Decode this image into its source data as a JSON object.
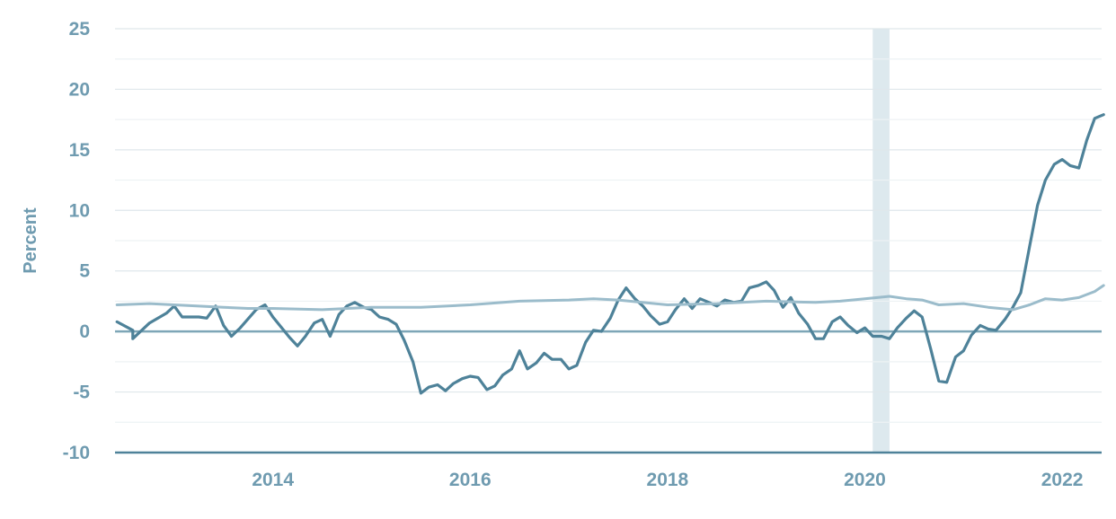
{
  "chart_data": {
    "type": "line",
    "title": "",
    "xlabel": "",
    "ylabel": "Percent",
    "xlim": [
      2012.4,
      2022.4
    ],
    "ylim": [
      -10,
      25
    ],
    "x_ticks": [
      2014,
      2016,
      2018,
      2020,
      2022
    ],
    "x_tick_labels": [
      "2014",
      "2016",
      "2018",
      "2020",
      "2022"
    ],
    "y_ticks": [
      -10,
      -5,
      0,
      5,
      10,
      15,
      20,
      25
    ],
    "y_tick_labels": [
      "-10",
      "-5",
      "0",
      "5",
      "10",
      "15",
      "20",
      "25"
    ],
    "minor_gridlines_every": 2.5,
    "shaded_regions": [
      {
        "from": 2020.08,
        "to": 2020.25,
        "color": "#dde9ee"
      }
    ],
    "series": [
      {
        "color": "#4e8299",
        "points": [
          [
            2012.42,
            0.8
          ],
          [
            2012.58,
            0.1
          ],
          [
            2012.58,
            -0.6
          ],
          [
            2012.75,
            0.7
          ],
          [
            2012.92,
            1.5
          ],
          [
            2013.0,
            2.1
          ],
          [
            2013.08,
            1.2
          ],
          [
            2013.25,
            1.2
          ],
          [
            2013.33,
            1.1
          ],
          [
            2013.42,
            2.1
          ],
          [
            2013.5,
            0.5
          ],
          [
            2013.58,
            -0.4
          ],
          [
            2013.67,
            0.3
          ],
          [
            2013.83,
            1.8
          ],
          [
            2013.92,
            2.2
          ],
          [
            2014.0,
            1.2
          ],
          [
            2014.17,
            -0.5
          ],
          [
            2014.25,
            -1.2
          ],
          [
            2014.33,
            -0.4
          ],
          [
            2014.42,
            0.7
          ],
          [
            2014.5,
            1.0
          ],
          [
            2014.58,
            -0.4
          ],
          [
            2014.67,
            1.4
          ],
          [
            2014.75,
            2.1
          ],
          [
            2014.83,
            2.4
          ],
          [
            2014.92,
            2.0
          ],
          [
            2015.0,
            1.8
          ],
          [
            2015.08,
            1.2
          ],
          [
            2015.17,
            1.0
          ],
          [
            2015.25,
            0.6
          ],
          [
            2015.33,
            -0.7
          ],
          [
            2015.42,
            -2.5
          ],
          [
            2015.5,
            -5.1
          ],
          [
            2015.58,
            -4.6
          ],
          [
            2015.67,
            -4.4
          ],
          [
            2015.75,
            -4.9
          ],
          [
            2015.83,
            -4.3
          ],
          [
            2015.92,
            -3.9
          ],
          [
            2016.0,
            -3.7
          ],
          [
            2016.08,
            -3.8
          ],
          [
            2016.17,
            -4.8
          ],
          [
            2016.25,
            -4.5
          ],
          [
            2016.33,
            -3.6
          ],
          [
            2016.42,
            -3.1
          ],
          [
            2016.5,
            -1.6
          ],
          [
            2016.58,
            -3.1
          ],
          [
            2016.67,
            -2.6
          ],
          [
            2016.75,
            -1.8
          ],
          [
            2016.83,
            -2.3
          ],
          [
            2016.92,
            -2.3
          ],
          [
            2017.0,
            -3.1
          ],
          [
            2017.08,
            -2.8
          ],
          [
            2017.17,
            -0.9
          ],
          [
            2017.25,
            0.1
          ],
          [
            2017.33,
            0.0
          ],
          [
            2017.42,
            1.1
          ],
          [
            2017.5,
            2.6
          ],
          [
            2017.58,
            3.6
          ],
          [
            2017.67,
            2.7
          ],
          [
            2017.75,
            2.1
          ],
          [
            2017.83,
            1.3
          ],
          [
            2017.92,
            0.6
          ],
          [
            2018.0,
            0.8
          ],
          [
            2018.08,
            1.8
          ],
          [
            2018.17,
            2.7
          ],
          [
            2018.25,
            1.9
          ],
          [
            2018.33,
            2.7
          ],
          [
            2018.42,
            2.4
          ],
          [
            2018.5,
            2.1
          ],
          [
            2018.58,
            2.6
          ],
          [
            2018.67,
            2.4
          ],
          [
            2018.75,
            2.5
          ],
          [
            2018.83,
            3.6
          ],
          [
            2018.92,
            3.8
          ],
          [
            2019.0,
            4.1
          ],
          [
            2019.08,
            3.4
          ],
          [
            2019.17,
            2.0
          ],
          [
            2019.25,
            2.8
          ],
          [
            2019.33,
            1.5
          ],
          [
            2019.42,
            0.6
          ],
          [
            2019.5,
            -0.6
          ],
          [
            2019.58,
            -0.6
          ],
          [
            2019.67,
            0.8
          ],
          [
            2019.75,
            1.2
          ],
          [
            2019.83,
            0.5
          ],
          [
            2019.92,
            -0.1
          ],
          [
            2020.0,
            0.3
          ],
          [
            2020.08,
            -0.4
          ],
          [
            2020.17,
            -0.4
          ],
          [
            2020.25,
            -0.6
          ],
          [
            2020.33,
            0.3
          ],
          [
            2020.42,
            1.1
          ],
          [
            2020.5,
            1.7
          ],
          [
            2020.58,
            1.2
          ],
          [
            2020.67,
            -1.5
          ],
          [
            2020.75,
            -4.1
          ],
          [
            2020.83,
            -4.2
          ],
          [
            2020.92,
            -2.1
          ],
          [
            2021.0,
            -1.6
          ],
          [
            2021.08,
            -0.3
          ],
          [
            2021.17,
            0.5
          ],
          [
            2021.25,
            0.2
          ],
          [
            2021.33,
            0.1
          ],
          [
            2021.42,
            1.0
          ],
          [
            2021.5,
            2.0
          ],
          [
            2021.58,
            3.2
          ],
          [
            2021.67,
            7.0
          ],
          [
            2021.75,
            10.4
          ],
          [
            2021.83,
            12.5
          ],
          [
            2021.92,
            13.8
          ],
          [
            2022.0,
            14.2
          ],
          [
            2022.08,
            13.7
          ],
          [
            2022.17,
            13.5
          ],
          [
            2022.25,
            15.8
          ],
          [
            2022.33,
            17.6
          ],
          [
            2022.42,
            17.9
          ]
        ]
      },
      {
        "color": "#9bbccb",
        "points": [
          [
            2012.42,
            2.2
          ],
          [
            2012.75,
            2.3
          ],
          [
            2013.0,
            2.2
          ],
          [
            2013.5,
            2.0
          ],
          [
            2013.75,
            1.9
          ],
          [
            2014.0,
            1.9
          ],
          [
            2014.5,
            1.8
          ],
          [
            2015.0,
            2.0
          ],
          [
            2015.5,
            2.0
          ],
          [
            2016.0,
            2.2
          ],
          [
            2016.5,
            2.5
          ],
          [
            2017.0,
            2.6
          ],
          [
            2017.25,
            2.7
          ],
          [
            2017.5,
            2.6
          ],
          [
            2018.0,
            2.2
          ],
          [
            2018.5,
            2.3
          ],
          [
            2019.0,
            2.5
          ],
          [
            2019.5,
            2.4
          ],
          [
            2019.75,
            2.5
          ],
          [
            2020.0,
            2.7
          ],
          [
            2020.25,
            2.9
          ],
          [
            2020.42,
            2.7
          ],
          [
            2020.58,
            2.6
          ],
          [
            2020.75,
            2.2
          ],
          [
            2021.0,
            2.3
          ],
          [
            2021.25,
            2.0
          ],
          [
            2021.5,
            1.8
          ],
          [
            2021.67,
            2.2
          ],
          [
            2021.83,
            2.7
          ],
          [
            2022.0,
            2.6
          ],
          [
            2022.17,
            2.8
          ],
          [
            2022.33,
            3.3
          ],
          [
            2022.42,
            3.8
          ]
        ]
      }
    ]
  }
}
